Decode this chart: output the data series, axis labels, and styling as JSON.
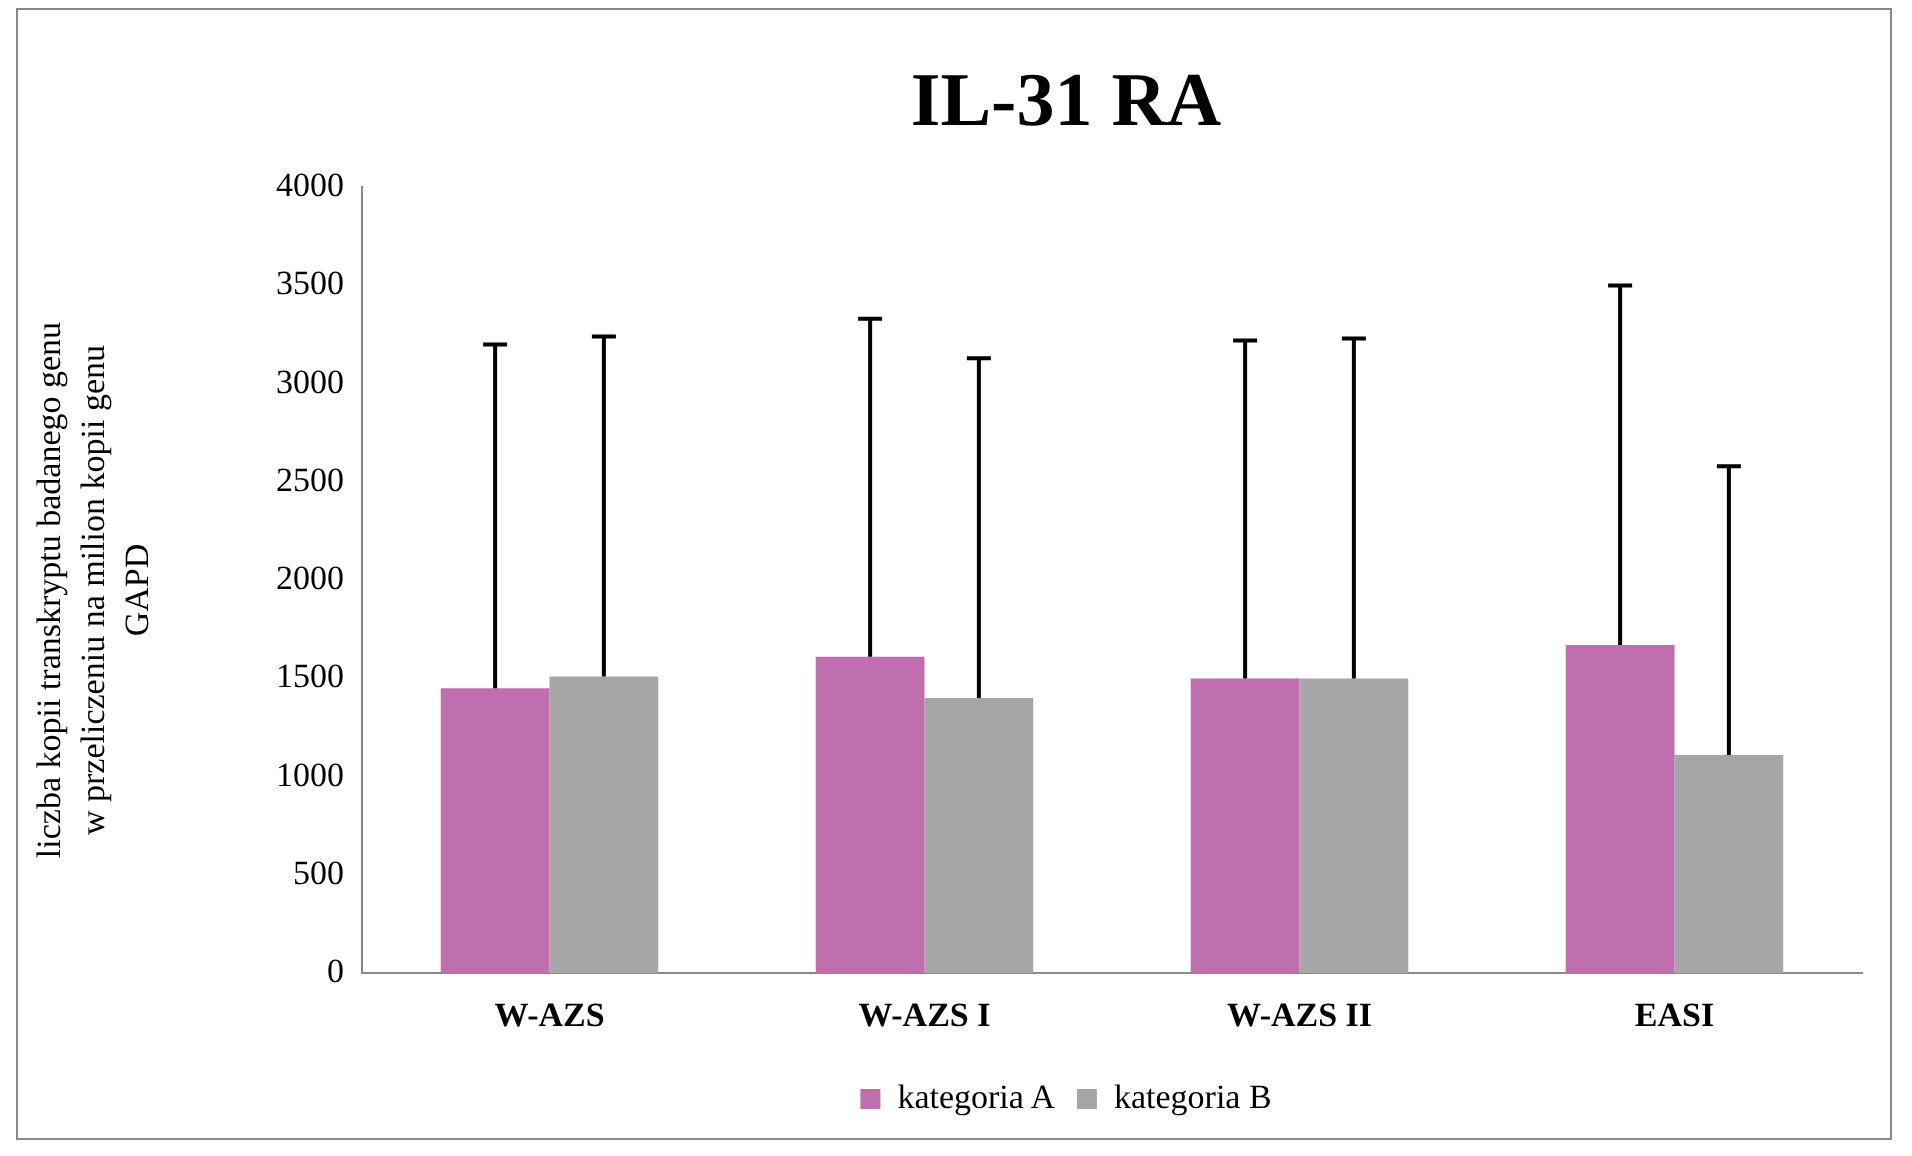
{
  "chart_data": {
    "type": "bar",
    "title": "IL-31 RA",
    "ylabel": "liczba kopii transkryptu badanego genu w przeliczeniu na milion kopii genu GAPD",
    "categories": [
      "W-AZS",
      "W-AZS I",
      "W-AZS II",
      "EASI"
    ],
    "series": [
      {
        "name": "kategoria A",
        "color": "#c06fae",
        "values": [
          1450,
          1610,
          1500,
          1670
        ],
        "errors": [
          [
            1450,
            3200
          ],
          [
            1610,
            3330
          ],
          [
            1500,
            3220
          ],
          [
            1670,
            3500
          ]
        ]
      },
      {
        "name": "kategoria B",
        "color": "#a6a6a6",
        "values": [
          1510,
          1400,
          1500,
          1110
        ],
        "errors": [
          [
            1510,
            3240
          ],
          [
            1400,
            3130
          ],
          [
            1500,
            3230
          ],
          [
            1110,
            2580
          ]
        ]
      }
    ],
    "ylim": [
      0,
      4000
    ],
    "yticks": [
      0,
      500,
      1000,
      1500,
      2000,
      2500,
      3000,
      3500,
      4000
    ],
    "grid": false,
    "legend": "bottom"
  }
}
